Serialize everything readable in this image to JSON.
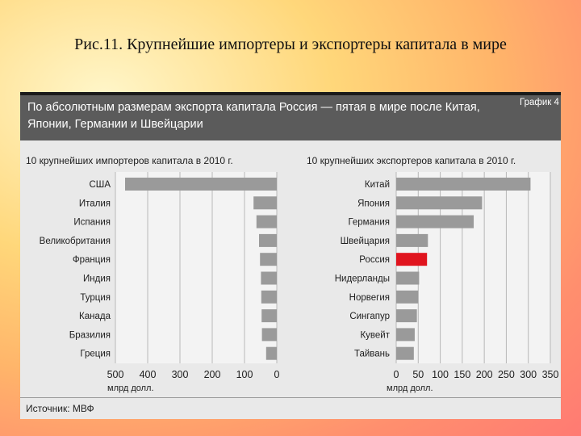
{
  "slide": {
    "title": "Рис.11. Крупнейшие импортеры и экспортеры капитала в мире"
  },
  "infographic": {
    "header": "По абсолютным размерам экспорта капитала Россия — пятая в мире после Китая, Японии, Германии и Швейцарии",
    "chart_number": "График 4",
    "source": "Источник: МВФ"
  },
  "colors": {
    "bar": "#9a9a9a",
    "highlight": "#e0141e",
    "header_band": "#5b5b5b",
    "panel": "#e9e9e9"
  },
  "chart_data": [
    {
      "type": "bar",
      "orientation": "horizontal",
      "direction": "right-to-left",
      "title": "10 крупнейших импортеров капитала в 2010 г.",
      "xlabel": "млрд долл.",
      "xlim": [
        0,
        500
      ],
      "xticks": [
        500,
        400,
        300,
        200,
        100,
        0
      ],
      "grid": true,
      "categories": [
        "США",
        "Италия",
        "Испания",
        "Великобритания",
        "Франция",
        "Индия",
        "Турция",
        "Канада",
        "Бразилия",
        "Греция"
      ],
      "values": [
        470,
        72,
        63,
        55,
        52,
        49,
        48,
        47,
        46,
        33
      ]
    },
    {
      "type": "bar",
      "orientation": "horizontal",
      "title": "10 крупнейших экспортеров капитала в 2010 г.",
      "xlabel": "млрд долл.",
      "xlim": [
        0,
        350
      ],
      "xticks": [
        0,
        50,
        100,
        150,
        200,
        250,
        300,
        350
      ],
      "grid": true,
      "categories": [
        "Китай",
        "Япония",
        "Германия",
        "Швейцария",
        "Россия",
        "Нидерланды",
        "Норвегия",
        "Сингапур",
        "Кувейт",
        "Тайвань"
      ],
      "values": [
        305,
        195,
        176,
        72,
        70,
        52,
        50,
        47,
        42,
        40
      ],
      "highlight": "Россия"
    }
  ]
}
